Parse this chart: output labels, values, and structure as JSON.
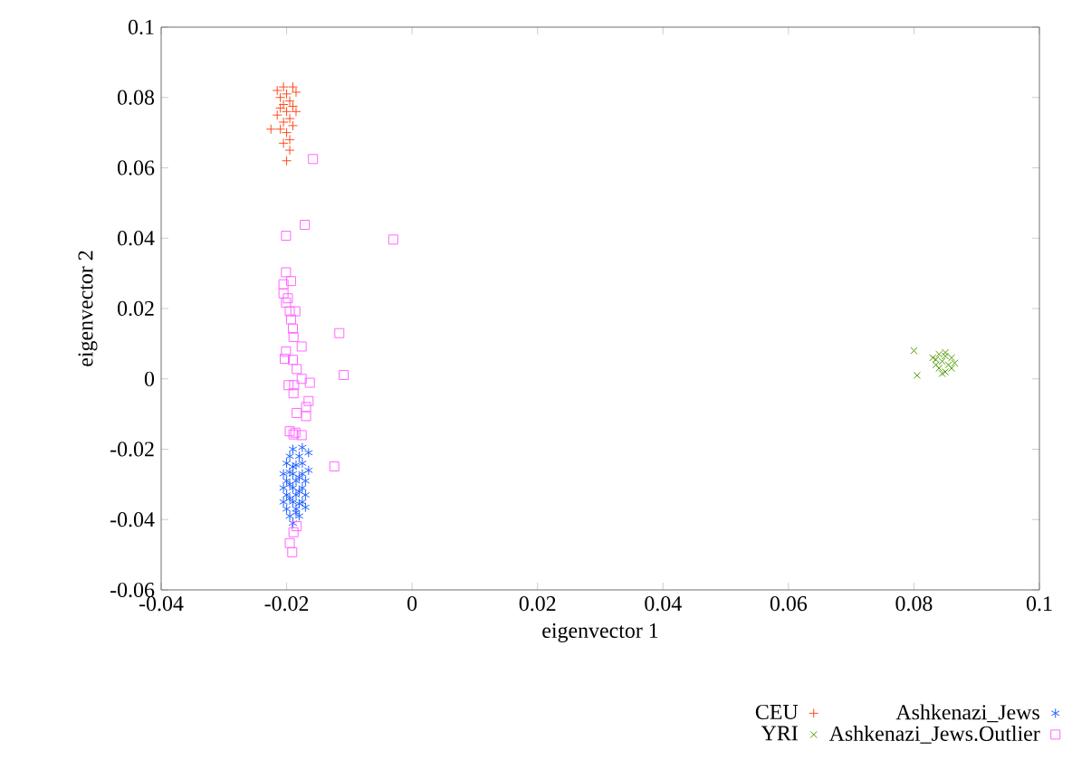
{
  "chart_data": {
    "type": "scatter",
    "xlabel": "eigenvector 1",
    "ylabel": "eigenvector 2",
    "xlim": [
      -0.04,
      0.1
    ],
    "ylim": [
      -0.06,
      0.1
    ],
    "xticks": [
      -0.04,
      -0.02,
      0,
      0.02,
      0.04,
      0.06,
      0.08,
      0.1
    ],
    "yticks": [
      -0.06,
      -0.04,
      -0.02,
      0,
      0.02,
      0.04,
      0.06,
      0.08,
      0.1
    ],
    "legend": "bottom",
    "series": [
      {
        "name": "CEU",
        "color": "#ff4a1c",
        "marker": "plus",
        "x": [
          -0.0205,
          -0.019,
          -0.0215,
          -0.02,
          -0.0185,
          -0.021,
          -0.0195,
          -0.0205,
          -0.019,
          -0.021,
          -0.02,
          -0.0185,
          -0.0215,
          -0.0195,
          -0.0205,
          -0.019,
          -0.0225,
          -0.021,
          -0.02,
          -0.0195,
          -0.0205,
          -0.0195,
          -0.02
        ],
        "values": [
          0.083,
          0.083,
          0.082,
          0.081,
          0.0815,
          0.08,
          0.079,
          0.078,
          0.0775,
          0.077,
          0.076,
          0.076,
          0.075,
          0.074,
          0.073,
          0.072,
          0.071,
          0.071,
          0.07,
          0.068,
          0.067,
          0.065,
          0.062
        ]
      },
      {
        "name": "YRI",
        "color": "#4c9a00",
        "marker": "cross",
        "x": [
          0.08,
          0.0805,
          0.083,
          0.0835,
          0.084,
          0.084,
          0.0845,
          0.085,
          0.085,
          0.0855,
          0.086,
          0.086,
          0.0845,
          0.0835,
          0.0865,
          0.085
        ],
        "values": [
          0.008,
          0.001,
          0.006,
          0.004,
          0.007,
          0.003,
          0.005,
          0.0065,
          0.002,
          0.004,
          0.006,
          0.003,
          0.0015,
          0.0055,
          0.0045,
          0.0075
        ]
      },
      {
        "name": "Ashkenazi_Jews",
        "color": "#1f5fff",
        "x": [
          -0.019,
          -0.0175,
          -0.0195,
          -0.018,
          -0.0165,
          -0.02,
          -0.019,
          -0.0175,
          -0.0205,
          -0.019,
          -0.0175,
          -0.0165,
          -0.02,
          -0.0185,
          -0.017,
          -0.0205,
          -0.019,
          -0.0175,
          -0.02,
          -0.0185,
          -0.017,
          -0.0205,
          -0.019,
          -0.0175,
          -0.02,
          -0.0185,
          -0.017,
          -0.0195,
          -0.018,
          -0.019,
          -0.0185,
          -0.0195,
          -0.018,
          -0.0195,
          -0.018,
          -0.0185,
          -0.018,
          -0.0195
        ],
        "values": [
          -0.02,
          -0.0195,
          -0.022,
          -0.022,
          -0.021,
          -0.024,
          -0.025,
          -0.024,
          -0.027,
          -0.027,
          -0.027,
          -0.026,
          -0.029,
          -0.029,
          -0.029,
          -0.031,
          -0.031,
          -0.031,
          -0.033,
          -0.033,
          -0.033,
          -0.035,
          -0.035,
          -0.035,
          -0.037,
          -0.037,
          -0.0365,
          -0.039,
          -0.039,
          -0.041,
          -0.0245,
          -0.03,
          -0.032,
          -0.034,
          -0.0355,
          -0.038,
          -0.028,
          -0.0265
        ]
      },
      {
        "name": "Ashkenazi_Jews.Outlier",
        "color": "#ff66ff",
        "marker": "square",
        "x": [
          -0.0158,
          -0.0171,
          -0.0201,
          -0.003,
          -0.0201,
          -0.0193,
          -0.0205,
          -0.0205,
          -0.0198,
          -0.0201,
          -0.0195,
          -0.0186,
          -0.0193,
          -0.019,
          -0.0189,
          -0.0116,
          -0.0176,
          -0.0201,
          -0.0203,
          -0.019,
          -0.0184,
          -0.0109,
          -0.0163,
          -0.0197,
          -0.0188,
          -0.0189,
          -0.0176,
          -0.0165,
          -0.0169,
          -0.0184,
          -0.0169,
          -0.0195,
          -0.0186,
          -0.0176,
          -0.0189,
          -0.0124,
          -0.0184,
          -0.0189,
          -0.0195,
          -0.0191
        ],
        "values": [
          0.0625,
          0.0438,
          0.0407,
          0.0396,
          0.0303,
          0.0278,
          0.0269,
          0.0243,
          0.0229,
          0.0217,
          0.0192,
          0.0192,
          0.0169,
          0.0143,
          0.0119,
          0.013,
          0.0092,
          0.0078,
          0.0057,
          0.0054,
          0.0028,
          0.0011,
          -0.0011,
          -0.0018,
          -0.0018,
          -0.0041,
          0.0,
          -0.0063,
          -0.008,
          -0.0097,
          -0.0106,
          -0.0149,
          -0.0153,
          -0.016,
          -0.0158,
          -0.0249,
          -0.0419,
          -0.0436,
          -0.0467,
          -0.0493
        ]
      }
    ]
  }
}
